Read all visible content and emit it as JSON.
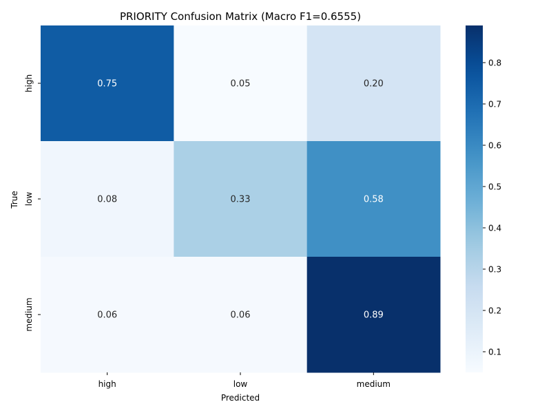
{
  "chart_data": {
    "type": "heatmap",
    "title": "PRIORITY Confusion Matrix (Macro F1=0.6555)",
    "xlabel": "Predicted",
    "ylabel": "True",
    "x_categories": [
      "high",
      "low",
      "medium"
    ],
    "y_categories": [
      "high",
      "low",
      "medium"
    ],
    "values": [
      [
        0.75,
        0.05,
        0.2
      ],
      [
        0.08,
        0.33,
        0.58
      ],
      [
        0.06,
        0.06,
        0.89
      ]
    ],
    "annotations": [
      [
        "0.75",
        "0.05",
        "0.20"
      ],
      [
        "0.08",
        "0.33",
        "0.58"
      ],
      [
        "0.06",
        "0.06",
        "0.89"
      ]
    ],
    "colormap": "Blues",
    "colorbar": {
      "range": [
        0.05,
        0.89
      ],
      "ticks": [
        0.1,
        0.2,
        0.3,
        0.4,
        0.5,
        0.6,
        0.7,
        0.8
      ],
      "tick_labels": [
        "0.1",
        "0.2",
        "0.3",
        "0.4",
        "0.5",
        "0.6",
        "0.7",
        "0.8"
      ]
    }
  }
}
